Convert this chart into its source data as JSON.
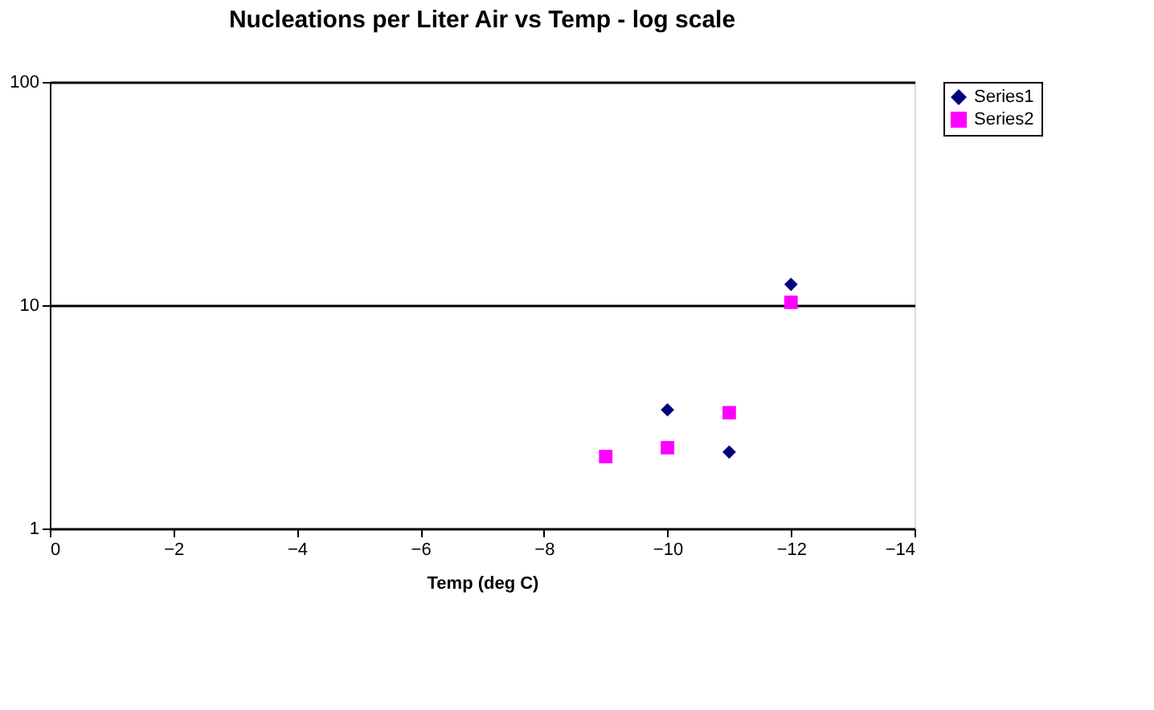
{
  "chart_data": {
    "type": "scatter",
    "title": "Nucleations per Liter Air vs Temp - log scale",
    "xlabel": "Temp (deg C)",
    "xlim": [
      0,
      -14
    ],
    "xticks": [
      0,
      -2,
      -4,
      -6,
      -8,
      -10,
      -12,
      -14
    ],
    "ylim": [
      1,
      100
    ],
    "yticks": [
      1,
      10,
      100
    ],
    "log": "y",
    "grid": "y",
    "legend": "right",
    "series": [
      {
        "name": "Series1",
        "color": "#000080",
        "marker": "diamond",
        "x": [
          -10,
          -11,
          -12
        ],
        "values": [
          3.4,
          2.2,
          12.4
        ]
      },
      {
        "name": "Series2",
        "color": "#ff00ff",
        "marker": "square",
        "x": [
          -9,
          -10,
          -11,
          -12
        ],
        "values": [
          2.1,
          2.3,
          3.3,
          10.3
        ]
      }
    ]
  }
}
